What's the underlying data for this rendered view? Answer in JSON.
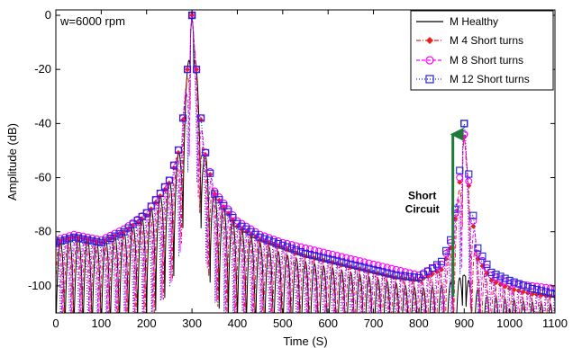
{
  "chart_data": {
    "type": "line",
    "title": "",
    "annotation_text": "w=6000 rpm",
    "xlabel": "Time (S)",
    "ylabel": "Amplitude (dB)",
    "xlim": [
      0,
      1100
    ],
    "ylim": [
      -110,
      2
    ],
    "xticks": [
      0,
      100,
      200,
      300,
      400,
      500,
      600,
      700,
      800,
      900,
      1000,
      1100
    ],
    "yticks": [
      0,
      -20,
      -40,
      -60,
      -80,
      -100
    ],
    "grid": false,
    "legend_position": "top-right",
    "series": [
      {
        "name": "M Healthy",
        "color": "#000000",
        "line_style": "solid",
        "marker": "none",
        "peaks": [
          [
            300,
            0
          ],
          [
            900,
            -96
          ]
        ],
        "envelope": [
          [
            0,
            -84
          ],
          [
            40,
            -82
          ],
          [
            100,
            -84
          ],
          [
            150,
            -80
          ],
          [
            200,
            -74
          ],
          [
            250,
            -62
          ],
          [
            275,
            -48
          ],
          [
            290,
            -20
          ],
          [
            300,
            0
          ],
          [
            310,
            -20
          ],
          [
            325,
            -48
          ],
          [
            350,
            -66
          ],
          [
            400,
            -78
          ],
          [
            450,
            -84
          ],
          [
            500,
            -88
          ],
          [
            550,
            -91
          ],
          [
            600,
            -93
          ],
          [
            650,
            -95
          ],
          [
            700,
            -97
          ],
          [
            750,
            -99
          ],
          [
            800,
            -101
          ],
          [
            850,
            -100
          ],
          [
            880,
            -98
          ],
          [
            900,
            -96
          ],
          [
            920,
            -100
          ],
          [
            950,
            -104
          ],
          [
            1000,
            -105
          ],
          [
            1050,
            -106
          ],
          [
            1100,
            -107
          ]
        ]
      },
      {
        "name": "M 4 Short turns",
        "color": "#e8211a",
        "line_style": "dashdot",
        "marker": "diamond",
        "peaks": [
          [
            300,
            0
          ],
          [
            900,
            -45
          ]
        ],
        "envelope": [
          [
            0,
            -84
          ],
          [
            40,
            -82
          ],
          [
            100,
            -84
          ],
          [
            150,
            -80
          ],
          [
            200,
            -74
          ],
          [
            250,
            -62
          ],
          [
            275,
            -48
          ],
          [
            290,
            -20
          ],
          [
            300,
            0
          ],
          [
            310,
            -20
          ],
          [
            325,
            -48
          ],
          [
            350,
            -66
          ],
          [
            400,
            -78
          ],
          [
            450,
            -83
          ],
          [
            500,
            -86
          ],
          [
            550,
            -89
          ],
          [
            600,
            -91
          ],
          [
            650,
            -93
          ],
          [
            700,
            -95
          ],
          [
            750,
            -97
          ],
          [
            800,
            -98
          ],
          [
            850,
            -94
          ],
          [
            870,
            -86
          ],
          [
            885,
            -70
          ],
          [
            900,
            -45
          ],
          [
            915,
            -72
          ],
          [
            930,
            -90
          ],
          [
            960,
            -98
          ],
          [
            1000,
            -101
          ],
          [
            1050,
            -103
          ],
          [
            1100,
            -104
          ]
        ]
      },
      {
        "name": "M 8 Short turns",
        "color": "#ff00ff",
        "line_style": "dashed",
        "marker": "circle",
        "peaks": [
          [
            300,
            0
          ],
          [
            900,
            -44
          ]
        ],
        "envelope": [
          [
            0,
            -83
          ],
          [
            40,
            -81
          ],
          [
            100,
            -83
          ],
          [
            150,
            -79
          ],
          [
            200,
            -73
          ],
          [
            250,
            -61
          ],
          [
            275,
            -47
          ],
          [
            290,
            -20
          ],
          [
            300,
            0
          ],
          [
            310,
            -20
          ],
          [
            325,
            -47
          ],
          [
            350,
            -65
          ],
          [
            400,
            -76
          ],
          [
            450,
            -81
          ],
          [
            500,
            -84
          ],
          [
            550,
            -86
          ],
          [
            600,
            -88
          ],
          [
            650,
            -90
          ],
          [
            700,
            -92
          ],
          [
            750,
            -94
          ],
          [
            800,
            -96
          ],
          [
            850,
            -92
          ],
          [
            870,
            -84
          ],
          [
            885,
            -68
          ],
          [
            900,
            -44
          ],
          [
            915,
            -70
          ],
          [
            930,
            -88
          ],
          [
            960,
            -96
          ],
          [
            1000,
            -99
          ],
          [
            1050,
            -100
          ],
          [
            1100,
            -101
          ]
        ]
      },
      {
        "name": "M 12 Short turns",
        "color": "#2020d8",
        "line_style": "dotted",
        "marker": "square",
        "peaks": [
          [
            300,
            0
          ],
          [
            900,
            -40
          ]
        ],
        "envelope": [
          [
            0,
            -84
          ],
          [
            40,
            -82
          ],
          [
            100,
            -84
          ],
          [
            150,
            -80
          ],
          [
            200,
            -73
          ],
          [
            250,
            -61
          ],
          [
            275,
            -47
          ],
          [
            290,
            -20
          ],
          [
            300,
            0
          ],
          [
            310,
            -20
          ],
          [
            325,
            -47
          ],
          [
            350,
            -66
          ],
          [
            400,
            -77
          ],
          [
            450,
            -82
          ],
          [
            500,
            -85
          ],
          [
            550,
            -88
          ],
          [
            600,
            -90
          ],
          [
            650,
            -92
          ],
          [
            700,
            -94
          ],
          [
            750,
            -96
          ],
          [
            800,
            -97
          ],
          [
            850,
            -91
          ],
          [
            870,
            -83
          ],
          [
            885,
            -66
          ],
          [
            900,
            -40
          ],
          [
            915,
            -68
          ],
          [
            930,
            -86
          ],
          [
            960,
            -95
          ],
          [
            1000,
            -98
          ],
          [
            1050,
            -101
          ],
          [
            1100,
            -103
          ]
        ]
      }
    ],
    "arrow_annotation": {
      "label_line1": "Short",
      "label_line2": "Circuit",
      "color": "#1f7a3a",
      "x": 875,
      "y_from": -104,
      "y_to": -42
    }
  }
}
